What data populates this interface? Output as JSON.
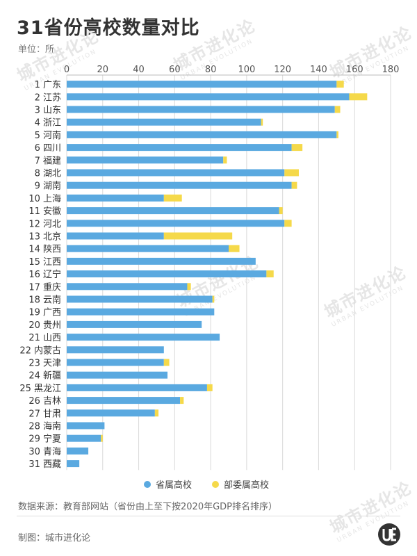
{
  "header": {
    "title": "31省份高校数量对比",
    "unit": "单位：所"
  },
  "footer": {
    "source": "数据来源：教育部网站（省份由上至下按2020年GDP排名排序）",
    "maker": "制图：城市进化论"
  },
  "watermark": {
    "text": "城市进化论",
    "sub": "URBAN EVOLUTION"
  },
  "colors": {
    "provincial": "#5aa9e0",
    "ministry": "#f5d94a",
    "grid": "#d9d9d9"
  },
  "chart_data": {
    "type": "bar",
    "orientation": "horizontal",
    "stacked": true,
    "xlim": [
      0,
      180
    ],
    "xticks": [
      "0",
      "20",
      "40",
      "60",
      "80",
      "100",
      "120",
      "140",
      "160",
      "180"
    ],
    "categories": [
      "1 广东",
      "2 江苏",
      "3 山东",
      "4 浙江",
      "5 河南",
      "6 四川",
      "7 福建",
      "8 湖北",
      "9 湖南",
      "10 上海",
      "11 安徽",
      "12 河北",
      "13 北京",
      "14 陕西",
      "15 江西",
      "16 辽宁",
      "17 重庆",
      "18 云南",
      "19 广西",
      "20 贵州",
      "21 山西",
      "22 内蒙古",
      "23 天津",
      "24 新疆",
      "25 黑龙江",
      "26 吉林",
      "27 甘肃",
      "28 海南",
      "29 宁夏",
      "30 青海",
      "31 西藏"
    ],
    "series": [
      {
        "name": "省属高校",
        "values": [
          150,
          157,
          149,
          108,
          150,
          125,
          87,
          121,
          125,
          54,
          118,
          121,
          54,
          90,
          105,
          111,
          67,
          81,
          82,
          75,
          85,
          54,
          54,
          56,
          78,
          63,
          49,
          21,
          19,
          12,
          7
        ]
      },
      {
        "name": "部委属高校",
        "values": [
          4,
          10,
          3,
          1,
          1,
          6,
          2,
          8,
          3,
          10,
          2,
          4,
          38,
          6,
          0,
          4,
          2,
          1,
          0,
          0,
          0,
          0,
          3,
          0,
          3,
          2,
          2,
          0,
          1,
          0,
          0
        ]
      }
    ],
    "legend": [
      "省属高校",
      "部委属高校"
    ],
    "legend_position": "bottom",
    "grid": true
  }
}
